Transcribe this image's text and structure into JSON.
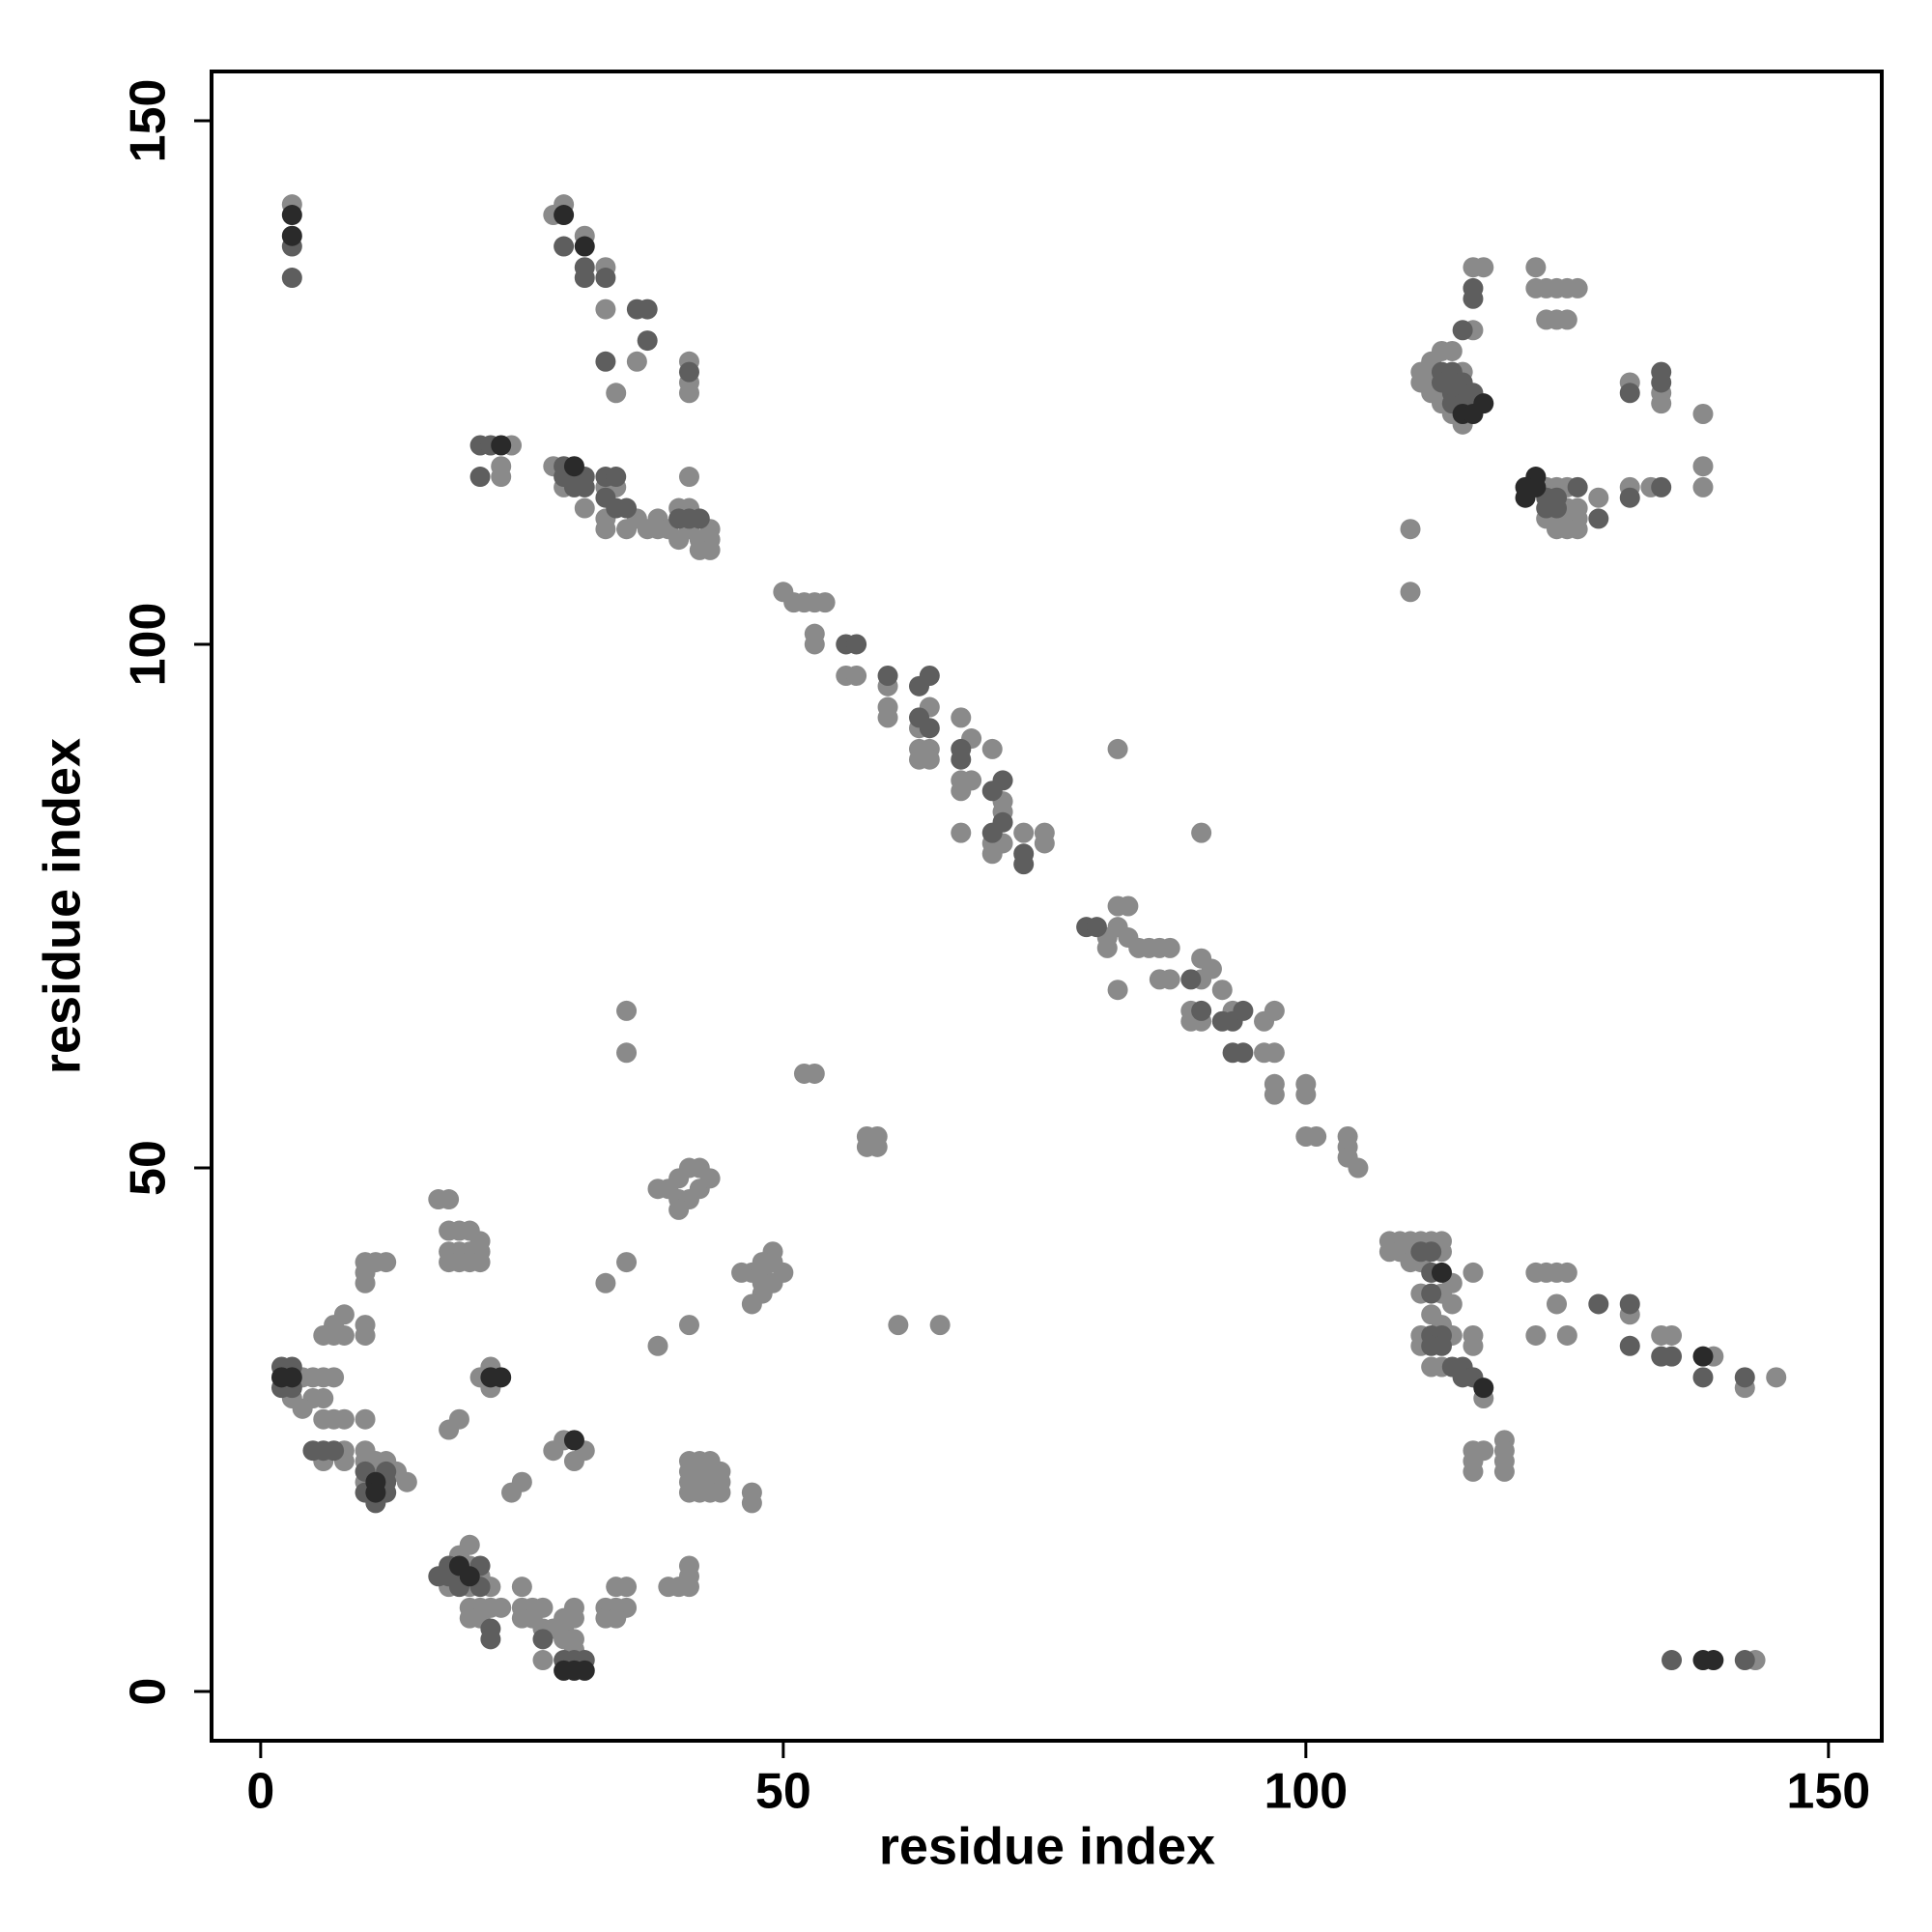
{
  "chart_data": {
    "type": "scatter",
    "x_label": "residue index",
    "y_label": "residue index",
    "xlim": [
      -4.7,
      155.1
    ],
    "ylim": [
      -4.7,
      154.7
    ],
    "xticks": [
      0,
      50,
      100,
      150
    ],
    "yticks": [
      0,
      50,
      100,
      150
    ],
    "series": [
      {
        "color": "#2a2a2a",
        "x": [
          3,
          3,
          29,
          31,
          23,
          30,
          115,
          116,
          117,
          122,
          121,
          122,
          121,
          3,
          2,
          22,
          23,
          30,
          11,
          11,
          20,
          19,
          29,
          30,
          31,
          138,
          139,
          138,
          113,
          117
        ],
        "values": [
          141,
          139,
          141,
          138,
          119,
          117,
          122,
          122,
          123,
          116,
          115,
          115,
          114,
          30,
          30,
          30,
          30,
          24,
          20,
          19,
          11,
          12,
          2,
          2,
          2,
          3,
          3,
          32,
          40,
          29
        ]
      },
      {
        "color": "#5e5e5e",
        "x": [
          3,
          3,
          29,
          31,
          31,
          33,
          36,
          37,
          37,
          33,
          41,
          21,
          22,
          21,
          29,
          29,
          30,
          31,
          30,
          31,
          33,
          34,
          33,
          34,
          35,
          40,
          41,
          42,
          56,
          57,
          60,
          63,
          64,
          63,
          64,
          67,
          67,
          70,
          71,
          70,
          71,
          73,
          73,
          79,
          80,
          89,
          90,
          92,
          93,
          94,
          93,
          94,
          111,
          112,
          112,
          112,
          112,
          113,
          112,
          113,
          114,
          115,
          115,
          116,
          128,
          131,
          131,
          134,
          135,
          138,
          142,
          135,
          142,
          2,
          3,
          2,
          3,
          5,
          6,
          7,
          10,
          12,
          12,
          10,
          12,
          11,
          17,
          18,
          18,
          21,
          19,
          21,
          22,
          22,
          27,
          29,
          30,
          31,
          113,
          114,
          113,
          114,
          115,
          114,
          115,
          116,
          114,
          115,
          116,
          115,
          116,
          123,
          124,
          123,
          124,
          126,
          128,
          131,
          134,
          134,
          131,
          134,
          116
        ],
        "values": [
          138,
          135,
          138,
          136,
          135,
          135,
          132,
          132,
          129,
          127,
          126,
          119,
          119,
          116,
          117,
          116,
          116,
          116,
          115,
          115,
          116,
          116,
          114,
          113,
          113,
          112,
          112,
          112,
          100,
          100,
          97,
          96,
          97,
          93,
          92,
          90,
          89,
          86,
          87,
          82,
          83,
          80,
          79,
          73,
          73,
          68,
          65,
          64,
          64,
          65,
          61,
          61,
          42,
          42,
          40,
          38,
          34,
          34,
          33,
          33,
          31,
          31,
          30,
          30,
          37,
          37,
          33,
          32,
          32,
          30,
          30,
          3,
          3,
          31,
          31,
          29,
          29,
          23,
          23,
          23,
          21,
          20,
          21,
          19,
          19,
          18,
          11,
          11,
          12,
          12,
          10,
          10,
          6,
          5,
          5,
          3,
          3,
          3,
          126,
          126,
          125,
          125,
          125,
          124,
          124,
          124,
          123,
          123,
          123,
          130,
          134,
          114,
          114,
          113,
          113,
          115,
          112,
          124,
          126,
          125,
          114,
          115,
          133
        ]
      },
      {
        "color": "#8a8a8a",
        "x": [
          3,
          29,
          28,
          31,
          33,
          33,
          36,
          34,
          41,
          41,
          41,
          24,
          23,
          23,
          28,
          29,
          33,
          34,
          33,
          31,
          33,
          35,
          36,
          37,
          38,
          38,
          39,
          40,
          41,
          41,
          42,
          43,
          43,
          43,
          41,
          42,
          40,
          50,
          51,
          52,
          53,
          54,
          53,
          53,
          56,
          57,
          60,
          60,
          60,
          63,
          64,
          67,
          63,
          64,
          63,
          64,
          68,
          70,
          67,
          68,
          67,
          71,
          71,
          67,
          70,
          71,
          73,
          70,
          75,
          75,
          82,
          90,
          81,
          81,
          82,
          83,
          82,
          83,
          84,
          85,
          82,
          86,
          87,
          86,
          87,
          90,
          90,
          91,
          89,
          89,
          90,
          92,
          93,
          96,
          97,
          96,
          97,
          97,
          97,
          100,
          100,
          100,
          101,
          104,
          104,
          104,
          105,
          110,
          110,
          112,
          113,
          111,
          112,
          115,
          111,
          112,
          112,
          113,
          113,
          114,
          115,
          114,
          116,
          116,
          117,
          122,
          122,
          123,
          124,
          125,
          126,
          123,
          124,
          125,
          123,
          124,
          125,
          125,
          126,
          123,
          124,
          125,
          126,
          124,
          125,
          126,
          128,
          131,
          131,
          134,
          134,
          133,
          138,
          138,
          138,
          108,
          109,
          110,
          111,
          112,
          113,
          108,
          109,
          110,
          113,
          110,
          111,
          114,
          116,
          111,
          113,
          114,
          112,
          113,
          111,
          114,
          116,
          111,
          116,
          112,
          113,
          117,
          116,
          117,
          116,
          116,
          119,
          119,
          119,
          119,
          122,
          123,
          124,
          125,
          124,
          125,
          122,
          134,
          135,
          131,
          139,
          142,
          145,
          143,
          35,
          35,
          52,
          53,
          58,
          59,
          58,
          59,
          61,
          65,
          33,
          35,
          38,
          41,
          38,
          39,
          40,
          41,
          40,
          41,
          40,
          42,
          42,
          43,
          47,
          48,
          49,
          49,
          48,
          48,
          49,
          50,
          48,
          47,
          46,
          17,
          18,
          18,
          19,
          20,
          21,
          18,
          19,
          20,
          21,
          18,
          19,
          20,
          21,
          10,
          11,
          12,
          10,
          10,
          7,
          8,
          6,
          7,
          8,
          10,
          10,
          4,
          5,
          6,
          7,
          3,
          5,
          6,
          4,
          6,
          7,
          8,
          10,
          8,
          10,
          6,
          8,
          10,
          11,
          12,
          11,
          13,
          10,
          14,
          18,
          19,
          21,
          22,
          22,
          24,
          25,
          28,
          29,
          31,
          30,
          41,
          42,
          43,
          41,
          42,
          43,
          44,
          41,
          42,
          43,
          44,
          41,
          42,
          43,
          44,
          47,
          47,
          19,
          21,
          20,
          19,
          20,
          18,
          20,
          22,
          20,
          21,
          22,
          23,
          20,
          21,
          25,
          25,
          26,
          25,
          26,
          27,
          27,
          28,
          29,
          29,
          29,
          30,
          30,
          27,
          30,
          30,
          33,
          34,
          35,
          33,
          34,
          34,
          35,
          39,
          40,
          41,
          41,
          41
        ],
        "values": [
          142,
          142,
          141,
          139,
          136,
          132,
          127,
          124,
          127,
          125,
          124,
          119,
          116,
          117,
          117,
          115,
          115,
          115,
          112,
          113,
          111,
          111,
          112,
          111,
          112,
          111,
          111,
          113,
          113,
          111,
          110,
          111,
          110,
          109,
          116,
          109,
          110,
          105,
          104,
          104,
          104,
          104,
          101,
          100,
          97,
          97,
          96,
          94,
          93,
          92,
          94,
          93,
          90,
          90,
          89,
          89,
          91,
          90,
          87,
          87,
          86,
          85,
          84,
          82,
          81,
          81,
          82,
          80,
          82,
          81,
          90,
          82,
          72,
          71,
          75,
          75,
          73,
          72,
          71,
          71,
          67,
          71,
          71,
          68,
          68,
          68,
          70,
          69,
          65,
          64,
          64,
          67,
          65,
          61,
          61,
          64,
          65,
          58,
          57,
          58,
          57,
          53,
          53,
          53,
          52,
          51,
          50,
          111,
          105,
          127,
          128,
          126,
          126,
          126,
          125,
          125,
          124,
          124,
          123,
          122,
          121,
          128,
          130,
          136,
          136,
          136,
          134,
          134,
          134,
          134,
          134,
          131,
          131,
          131,
          115,
          115,
          115,
          113,
          113,
          112,
          112,
          112,
          112,
          111,
          111,
          111,
          114,
          115,
          125,
          123,
          124,
          115,
          115,
          117,
          122,
          43,
          43,
          43,
          43,
          43,
          43,
          42,
          42,
          42,
          42,
          41,
          41,
          39,
          40,
          38,
          38,
          37,
          36,
          35,
          34,
          34,
          34,
          33,
          33,
          31,
          31,
          28,
          23,
          23,
          22,
          21,
          24,
          23,
          22,
          21,
          40,
          40,
          40,
          40,
          37,
          34,
          34,
          34,
          34,
          36,
          32,
          29,
          30,
          3,
          65,
          61,
          59,
          59,
          53,
          53,
          52,
          52,
          35,
          35,
          39,
          41,
          33,
          35,
          48,
          48,
          49,
          50,
          47,
          47,
          46,
          48,
          50,
          49,
          40,
          41,
          42,
          41,
          40,
          39,
          39,
          40,
          38,
          37,
          40,
          47,
          47,
          44,
          44,
          44,
          43,
          42,
          42,
          42,
          42,
          41,
          41,
          41,
          41,
          41,
          41,
          41,
          40,
          39,
          35,
          36,
          34,
          34,
          34,
          35,
          34,
          30,
          30,
          30,
          30,
          28,
          28,
          28,
          27,
          26,
          26,
          26,
          26,
          23,
          23,
          22,
          22,
          22,
          22,
          22,
          21,
          21,
          20,
          20,
          25,
          26,
          30,
          31,
          29,
          19,
          20,
          23,
          24,
          23,
          22,
          22,
          22,
          22,
          21,
          21,
          21,
          21,
          20,
          20,
          20,
          20,
          19,
          19,
          19,
          19,
          19,
          18,
          11,
          11,
          12,
          13,
          14,
          10,
          10,
          10,
          8,
          8,
          8,
          8,
          7,
          7,
          10,
          8,
          8,
          7,
          7,
          8,
          6,
          6,
          7,
          6,
          5,
          5,
          4,
          3,
          7,
          8,
          8,
          8,
          8,
          7,
          7,
          10,
          10,
          10,
          10,
          10,
          11,
          12
        ]
      }
    ]
  }
}
